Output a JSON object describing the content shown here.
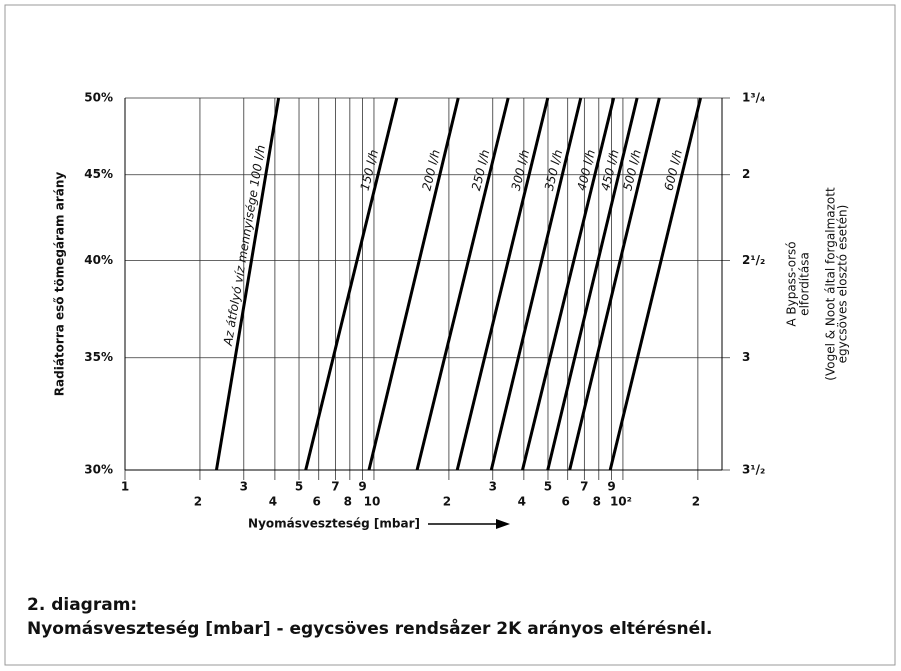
{
  "chart_data": {
    "type": "line",
    "xlabel": "Nyomásveszteség [mbar]",
    "ylabel": "Radiátorra eső tömegáram arány",
    "y2label": [
      "A Bypass-orsó",
      "elfordítása"
    ],
    "y2note": [
      "(Vogel & Noot által forgalmazott",
      "egycsöves elosztó esetén)"
    ],
    "caption": [
      "2. diagram:",
      "Nyomásveszteség [mbar] - egycsöves rendsåzer 2K arányos eltérésnél."
    ],
    "xscale": "log",
    "yscale": "log",
    "grid": true,
    "xlim": [
      1,
      250
    ],
    "ylim": [
      30,
      50
    ],
    "xticks": [
      1,
      {
        "value": 2,
        "label": "2"
      },
      3,
      4,
      5,
      6,
      7,
      8,
      9,
      10,
      {
        "value": 20,
        "label": "2"
      },
      {
        "value": 30,
        "label": "3"
      },
      {
        "value": 40,
        "label": "4"
      },
      {
        "value": 50,
        "label": "5"
      },
      {
        "value": 60,
        "label": "6"
      },
      {
        "value": 70,
        "label": "7"
      },
      {
        "value": 80,
        "label": "8"
      },
      {
        "value": 90,
        "label": "9"
      },
      {
        "value": 100,
        "label": "10²"
      },
      {
        "value": 200,
        "label": "2"
      }
    ],
    "yticks": [
      {
        "value": 50,
        "label": "50%"
      },
      {
        "value": 45,
        "label": "45%"
      },
      {
        "value": 40,
        "label": "40%"
      },
      {
        "value": 35,
        "label": "35%"
      },
      {
        "value": 30,
        "label": "30%"
      }
    ],
    "y2_labels": [
      "1³/₄",
      "2",
      "2¹/₂",
      "3",
      "3¹/₂"
    ],
    "y": [
      30,
      50
    ],
    "series": [
      {
        "name": "Az átfolyó víz mennyisége 100 l/h",
        "color": "#000000",
        "x": [
          2.33,
          4.14
        ]
      },
      {
        "name": "150 l/h",
        "color": "#000000",
        "x": [
          5.32,
          12.35
        ]
      },
      {
        "name": "200 l/h",
        "color": "#000000",
        "x": [
          9.55,
          21.8
        ]
      },
      {
        "name": "250 l/h",
        "color": "#000000",
        "x": [
          14.9,
          34.6
        ]
      },
      {
        "name": "300 l/h",
        "color": "#000000",
        "x": [
          21.6,
          49.9
        ]
      },
      {
        "name": "350 l/h",
        "color": "#000000",
        "x": [
          29.6,
          67.7
        ]
      },
      {
        "name": "400 l/h",
        "color": "#000000",
        "x": [
          39.5,
          91.8
        ]
      },
      {
        "name": "450 l/h",
        "color": "#000000",
        "x": [
          49.9,
          114
        ]
      },
      {
        "name": "500 l/h",
        "color": "#000000",
        "x": [
          61.1,
          140
        ]
      },
      {
        "name": "600 l/h",
        "color": "#000000",
        "x": [
          88.9,
          205
        ]
      }
    ]
  }
}
